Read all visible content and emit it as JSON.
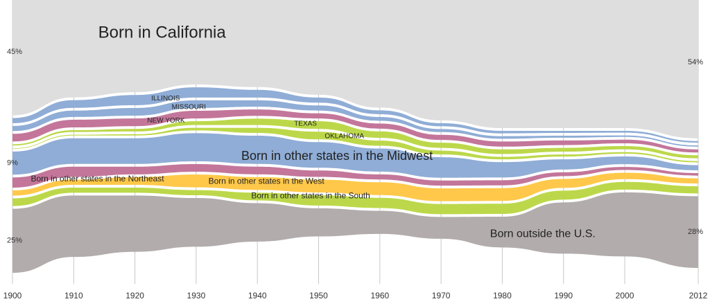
{
  "chart_data": {
    "type": "stream",
    "x": [
      1900,
      1910,
      1920,
      1930,
      1940,
      1950,
      1960,
      1970,
      1980,
      1990,
      2000,
      2012
    ],
    "xticks": [
      1900,
      1910,
      1920,
      1930,
      1940,
      1950,
      1960,
      1970,
      1980,
      1990,
      2000,
      2012
    ],
    "xlim": [
      1900,
      2012
    ],
    "ylim": [
      0,
      100
    ],
    "series": [
      {
        "name": "Born in California",
        "color": "#dedede",
        "values": [
          45,
          38,
          36,
          33,
          34,
          37,
          42,
          47,
          50,
          50,
          50,
          54
        ],
        "value_labels": [
          "45%",
          null,
          null,
          null,
          null,
          null,
          null,
          null,
          null,
          null,
          null,
          "54%"
        ]
      },
      {
        "name": "ILLINOIS",
        "color": "#8fadd6",
        "values": [
          2,
          3,
          4,
          4,
          3,
          2,
          1.5,
          1.2,
          1,
          0.8,
          0.7,
          0.6
        ]
      },
      {
        "name": "MISSOURI",
        "color": "#8fadd6",
        "values": [
          2,
          2.5,
          3,
          3,
          2.5,
          2,
          1.5,
          1.2,
          1,
          0.8,
          0.6,
          0.5
        ]
      },
      {
        "name": "NEW YORK",
        "color": "#c3769a",
        "values": [
          3,
          3,
          3,
          3,
          2.5,
          2,
          2,
          2,
          2,
          1.8,
          1.4,
          1.2
        ]
      },
      {
        "name": "TEXAS",
        "color": "#bcd84a",
        "values": [
          0.5,
          0.7,
          1,
          1.5,
          2.5,
          3,
          2.5,
          2,
          1.8,
          1.5,
          1.3,
          1.2
        ]
      },
      {
        "name": "OKLAHOMA",
        "color": "#bcd84a",
        "values": [
          0.2,
          0.3,
          0.5,
          1,
          2,
          3,
          2,
          1.5,
          1,
          0.8,
          0.6,
          0.5
        ]
      },
      {
        "name": "Born in other states in the Midwest",
        "color": "#8fadd6",
        "values": [
          9,
          10,
          10,
          11,
          11,
          10,
          9,
          8,
          6,
          4,
          3,
          2
        ],
        "value_labels": [
          "9%",
          null,
          null,
          null,
          null,
          null,
          null,
          null,
          null,
          null,
          null,
          null
        ]
      },
      {
        "name": "Born in other states in the Northeast",
        "color": "#c3769a",
        "values": [
          4,
          4,
          3,
          3,
          3,
          2.5,
          2,
          2,
          2,
          1.5,
          1.2,
          1
        ]
      },
      {
        "name": "Born in other states in the West",
        "color": "#ffc84a",
        "values": [
          2,
          2,
          3,
          5,
          5,
          5,
          5,
          5,
          5,
          3.5,
          2.5,
          2
        ]
      },
      {
        "name": "Born in other states in the South",
        "color": "#bcd84a",
        "values": [
          3,
          2,
          2,
          2,
          3,
          4,
          4,
          4,
          4,
          3.5,
          3,
          2.8
        ]
      },
      {
        "name": "Born outside the U.S.",
        "color": "#b2acac",
        "values": [
          25,
          24,
          22,
          19,
          15,
          11,
          9,
          8.5,
          12,
          20,
          25,
          28
        ],
        "value_labels": [
          "25%",
          null,
          null,
          null,
          null,
          null,
          null,
          null,
          null,
          null,
          null,
          "28%"
        ]
      }
    ]
  }
}
